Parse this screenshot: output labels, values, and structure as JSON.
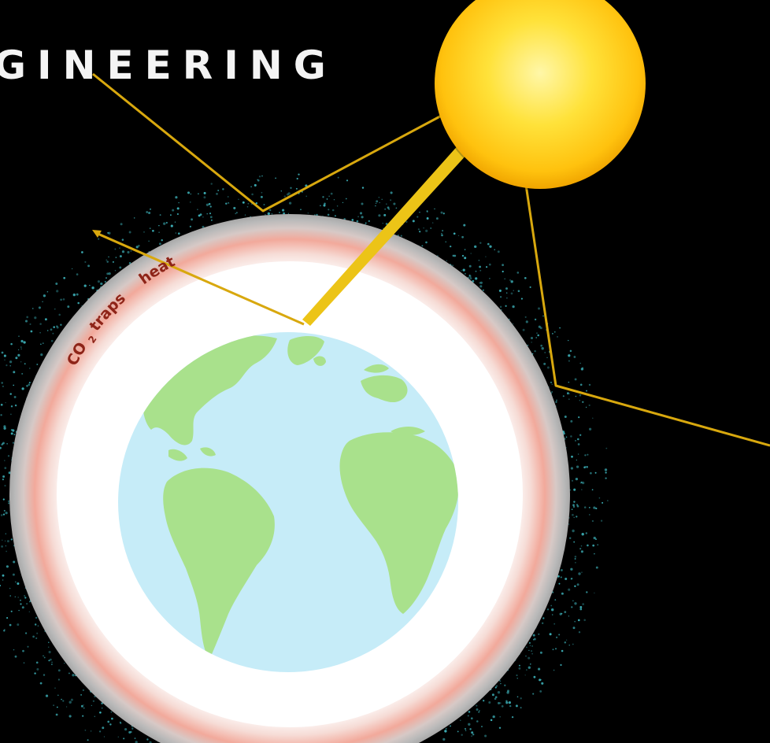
{
  "title": "GINEERING",
  "labels": {
    "co2": "CO",
    "co2_subscript": "2",
    "traps": " traps",
    "heat": "heat"
  },
  "colors": {
    "background": "#000000",
    "sun_core": "#fff7a8",
    "sun_mid": "#ffd21a",
    "sun_edge": "#f0a500",
    "ray": "#d8a80e",
    "ocean": "#c6ecf8",
    "land": "#a9e18c",
    "atmosphere_white": "#ffffff",
    "atmosphere_grey": "#b9b9b9",
    "atmosphere_pink": "#f2a99b",
    "particles": "#3fb7bf",
    "label_text": "#8e2418"
  },
  "icons": {
    "sun": "sun-icon",
    "earth": "earth-globe-icon"
  }
}
